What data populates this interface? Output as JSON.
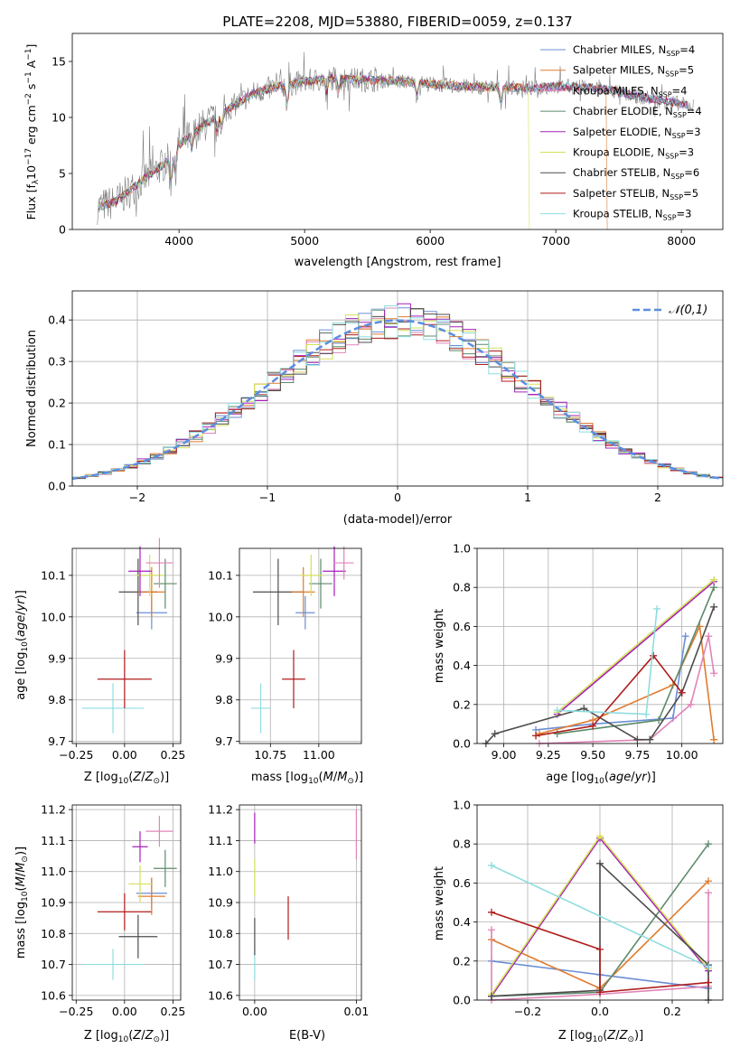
{
  "chart_data": [
    {
      "type": "line",
      "title": "PLATE=2208, MJD=53880, FIBERID=0059, z=0.137",
      "xlabel": "wavelength [Angstrom, rest frame]",
      "ylabel": "Flux [fλ10⁻¹⁷ erg cm⁻² s⁻¹ A⁻¹]",
      "xlim": [
        3150,
        8330
      ],
      "ylim": [
        0,
        17.5
      ],
      "xticks": [
        4000,
        5000,
        6000,
        7000,
        8000
      ],
      "yticks": [
        0,
        5,
        10,
        15
      ],
      "grid": false,
      "legend_position": "upper right",
      "data_color": "#808080",
      "continuum": {
        "x": [
          3350,
          3500,
          3700,
          3900,
          4000,
          4200,
          4400,
          4600,
          4800,
          5000,
          5200,
          5400,
          5600,
          5800,
          6000,
          6200,
          6400,
          6600,
          6800,
          7000,
          7200,
          7400,
          7600,
          7800,
          8000,
          8100
        ],
        "y": [
          2.0,
          2.5,
          4.3,
          6.0,
          7.6,
          9.3,
          10.8,
          12.2,
          12.8,
          13.2,
          13.5,
          13.4,
          13.3,
          13.2,
          13.0,
          12.8,
          12.7,
          12.7,
          12.6,
          12.8,
          12.7,
          12.5,
          12.0,
          11.6,
          11.2,
          11.0
        ]
      },
      "series": [
        {
          "name": "Chabrier MILES, N_SSP=4",
          "color": "#6b8ed6"
        },
        {
          "name": "Salpeter MILES, N_SSP=5",
          "color": "#e07b2f"
        },
        {
          "name": "Kroupa MILES, N_SSP=4",
          "color": "#e084b8"
        },
        {
          "name": "Chabrier ELODIE, N_SSP=4",
          "color": "#5d8a6a"
        },
        {
          "name": "Salpeter ELODIE, N_SSP=3",
          "color": "#a620b8"
        },
        {
          "name": "Kroupa ELODIE, N_SSP=3",
          "color": "#d4e05a"
        },
        {
          "name": "Chabrier STELIB, N_SSP=6",
          "color": "#4d4d4d"
        },
        {
          "name": "Salpeter STELIB, N_SSP=5",
          "color": "#b01c1c"
        },
        {
          "name": "Kroupa STELIB, N_SSP=3",
          "color": "#8fdde0"
        }
      ],
      "legend_entries": [
        {
          "prefix": "Chabrier MILES, N",
          "sub": "SSP",
          "suffix": "=4"
        },
        {
          "prefix": "Salpeter MILES, N",
          "sub": "SSP",
          "suffix": "=5"
        },
        {
          "prefix": "Kroupa MILES, N",
          "sub": "SSP",
          "suffix": "=4"
        },
        {
          "prefix": "Chabrier ELODIE, N",
          "sub": "SSP",
          "suffix": "=4"
        },
        {
          "prefix": "Salpeter ELODIE, N",
          "sub": "SSP",
          "suffix": "=3"
        },
        {
          "prefix": "Kroupa ELODIE, N",
          "sub": "SSP",
          "suffix": "=3"
        },
        {
          "prefix": "Chabrier STELIB, N",
          "sub": "SSP",
          "suffix": "=6"
        },
        {
          "prefix": "Salpeter STELIB, N",
          "sub": "SSP",
          "suffix": "=5"
        },
        {
          "prefix": "Kroupa STELIB, N",
          "sub": "SSP",
          "suffix": "=3"
        }
      ]
    },
    {
      "type": "bar",
      "xlabel": "(data-model)/error",
      "ylabel": "Normed distribution",
      "xlim": [
        -2.5,
        2.5
      ],
      "ylim": [
        0,
        0.47
      ],
      "xticks": [
        -2,
        -1,
        0,
        1,
        2
      ],
      "yticks": [
        0.0,
        0.1,
        0.2,
        0.3,
        0.4
      ],
      "grid": true,
      "legend_position": "upper right",
      "reference_curve": {
        "name": "𝒩(0,1)",
        "color": "#5b8ee0",
        "style": "dashed",
        "mean": 0,
        "sigma": 1
      },
      "bin_width": 0.1,
      "series_note": "one step histogram per model, same 9 colors as the spectrum panel"
    },
    {
      "type": "scatter",
      "xlabel": "Z [log₁₀(Z/Z⊙)]",
      "ylabel": "age  [log₁₀(age/yr)]",
      "xlim": [
        -0.27,
        0.29
      ],
      "ylim": [
        9.695,
        10.165
      ],
      "xticks": [
        -0.25,
        0.0,
        0.25
      ],
      "yticks": [
        9.7,
        9.8,
        9.9,
        10.0,
        10.1
      ],
      "grid": true,
      "points": [
        {
          "color": "#8fdde0",
          "x": -0.06,
          "xerr": 0.16,
          "y": 9.78,
          "yerr": 0.06
        },
        {
          "color": "#b01c1c",
          "x": 0.0,
          "xerr": 0.14,
          "y": 9.85,
          "yerr": 0.07
        },
        {
          "color": "#6b8ed6",
          "x": 0.14,
          "xerr": 0.08,
          "y": 10.01,
          "yerr": 0.04
        },
        {
          "color": "#4d4d4d",
          "x": 0.07,
          "xerr": 0.1,
          "y": 10.06,
          "yerr": 0.08
        },
        {
          "color": "#e07b2f",
          "x": 0.14,
          "xerr": 0.07,
          "y": 10.06,
          "yerr": 0.06
        },
        {
          "color": "#5d8a6a",
          "x": 0.21,
          "xerr": 0.06,
          "y": 10.08,
          "yerr": 0.06
        },
        {
          "color": "#d4e05a",
          "x": 0.13,
          "xerr": 0.07,
          "y": 10.1,
          "yerr": 0.05
        },
        {
          "color": "#a620b8",
          "x": 0.08,
          "xerr": 0.06,
          "y": 10.11,
          "yerr": 0.06
        },
        {
          "color": "#e084b8",
          "x": 0.18,
          "xerr": 0.07,
          "y": 10.13,
          "yerr": 0.06
        }
      ]
    },
    {
      "type": "scatter",
      "xlabel": "mass [log₁₀(M/M⊙)]",
      "ylabel": "",
      "xlim": [
        10.59,
        11.22
      ],
      "ylim": [
        9.695,
        10.165
      ],
      "xticks": [
        10.75,
        11.0
      ],
      "yticks": [
        9.7,
        9.8,
        9.9,
        10.0,
        10.1
      ],
      "grid": true,
      "points": [
        {
          "color": "#8fdde0",
          "x": 10.7,
          "xerr": 0.05,
          "y": 9.78,
          "yerr": 0.06
        },
        {
          "color": "#b01c1c",
          "x": 10.87,
          "xerr": 0.06,
          "y": 9.85,
          "yerr": 0.07
        },
        {
          "color": "#6b8ed6",
          "x": 10.93,
          "xerr": 0.05,
          "y": 10.01,
          "yerr": 0.04
        },
        {
          "color": "#4d4d4d",
          "x": 10.79,
          "xerr": 0.13,
          "y": 10.06,
          "yerr": 0.08
        },
        {
          "color": "#e07b2f",
          "x": 10.92,
          "xerr": 0.06,
          "y": 10.06,
          "yerr": 0.06
        },
        {
          "color": "#5d8a6a",
          "x": 11.01,
          "xerr": 0.06,
          "y": 10.08,
          "yerr": 0.06
        },
        {
          "color": "#d4e05a",
          "x": 10.96,
          "xerr": 0.06,
          "y": 10.1,
          "yerr": 0.05
        },
        {
          "color": "#a620b8",
          "x": 11.08,
          "xerr": 0.06,
          "y": 10.11,
          "yerr": 0.06
        },
        {
          "color": "#e084b8",
          "x": 11.13,
          "xerr": 0.05,
          "y": 10.13,
          "yerr": 0.04
        }
      ]
    },
    {
      "type": "line",
      "xlabel": "age  [log₁₀(age/yr)]",
      "ylabel": "mass weight",
      "xlim": [
        8.85,
        10.23
      ],
      "ylim": [
        0,
        1.0
      ],
      "xticks": [
        9.0,
        9.25,
        9.5,
        9.75,
        10.0
      ],
      "yticks": [
        0.0,
        0.2,
        0.4,
        0.6,
        0.8,
        1.0
      ],
      "grid": true,
      "series": [
        {
          "color": "#6b8ed6",
          "x": [
            9.18,
            9.5,
            9.95,
            10.02
          ],
          "y": [
            0.07,
            0.1,
            0.13,
            0.55
          ]
        },
        {
          "color": "#e07b2f",
          "x": [
            9.2,
            9.5,
            9.95,
            10.1,
            10.18
          ],
          "y": [
            0.05,
            0.12,
            0.3,
            0.6,
            0.02
          ]
        },
        {
          "color": "#e084b8",
          "x": [
            9.2,
            9.82,
            10.05,
            10.15,
            10.18
          ],
          "y": [
            0.0,
            0.02,
            0.2,
            0.55,
            0.36
          ]
        },
        {
          "color": "#5d8a6a",
          "x": [
            9.3,
            9.87,
            10.18
          ],
          "y": [
            0.05,
            0.12,
            0.8
          ]
        },
        {
          "color": "#a620b8",
          "x": [
            9.3,
            10.18
          ],
          "y": [
            0.15,
            0.83
          ]
        },
        {
          "color": "#d4e05a",
          "x": [
            9.3,
            10.18
          ],
          "y": [
            0.16,
            0.84
          ]
        },
        {
          "color": "#4d4d4d",
          "x": [
            8.9,
            8.95,
            9.45,
            9.75,
            9.82,
            10.0,
            10.18
          ],
          "y": [
            0.0,
            0.05,
            0.18,
            0.02,
            0.02,
            0.26,
            0.7
          ]
        },
        {
          "color": "#b01c1c",
          "x": [
            9.18,
            9.5,
            9.84,
            10.0
          ],
          "y": [
            0.04,
            0.09,
            0.45,
            0.26
          ]
        },
        {
          "color": "#8fdde0",
          "x": [
            9.3,
            9.8,
            9.86
          ],
          "y": [
            0.17,
            0.15,
            0.69
          ]
        }
      ]
    },
    {
      "type": "scatter",
      "xlabel": "Z [log₁₀(Z/Z⊙)]",
      "ylabel": "mass [log₁₀(M/M⊙)]",
      "xlim": [
        -0.27,
        0.29
      ],
      "ylim": [
        10.585,
        11.215
      ],
      "xticks": [
        -0.25,
        0.0,
        0.25
      ],
      "yticks": [
        10.6,
        10.7,
        10.8,
        10.9,
        11.0,
        11.1,
        11.2
      ],
      "grid": true,
      "points": [
        {
          "color": "#8fdde0",
          "x": -0.06,
          "xerr": 0.16,
          "y": 10.7,
          "yerr": 0.05
        },
        {
          "color": "#b01c1c",
          "x": 0.0,
          "xerr": 0.14,
          "y": 10.87,
          "yerr": 0.06
        },
        {
          "color": "#6b8ed6",
          "x": 0.14,
          "xerr": 0.08,
          "y": 10.93,
          "yerr": 0.05
        },
        {
          "color": "#4d4d4d",
          "x": 0.07,
          "xerr": 0.1,
          "y": 10.79,
          "yerr": 0.07
        },
        {
          "color": "#e07b2f",
          "x": 0.14,
          "xerr": 0.07,
          "y": 10.92,
          "yerr": 0.06
        },
        {
          "color": "#5d8a6a",
          "x": 0.21,
          "xerr": 0.06,
          "y": 11.01,
          "yerr": 0.06
        },
        {
          "color": "#d4e05a",
          "x": 0.08,
          "xerr": 0.06,
          "y": 10.96,
          "yerr": 0.06
        },
        {
          "color": "#a620b8",
          "x": 0.08,
          "xerr": 0.04,
          "y": 11.08,
          "yerr": 0.05
        },
        {
          "color": "#e084b8",
          "x": 0.18,
          "xerr": 0.07,
          "y": 11.13,
          "yerr": 0.05
        }
      ]
    },
    {
      "type": "scatter",
      "xlabel": "E(B-V)",
      "ylabel": "",
      "xlim": [
        -0.0015,
        0.0105
      ],
      "ylim": [
        10.585,
        11.215
      ],
      "xticks": [
        0.0,
        0.01
      ],
      "yticks": [
        10.6,
        10.7,
        10.8,
        10.9,
        11.0,
        11.1,
        11.2
      ],
      "grid": true,
      "points": [
        {
          "color": "#8fdde0",
          "x": 0.0,
          "y": 10.7,
          "yerr": 0.05
        },
        {
          "color": "#4d4d4d",
          "x": 0.0,
          "y": 10.79,
          "yerr": 0.06
        },
        {
          "color": "#d4e05a",
          "x": 0.0,
          "y": 10.98,
          "yerr": 0.06
        },
        {
          "color": "#a620b8",
          "x": 0.0,
          "y": 11.14,
          "yerr": 0.05
        },
        {
          "color": "#b01c1c",
          "x": 0.0033,
          "y": 10.85,
          "yerr": 0.07
        },
        {
          "color": "#e084b8",
          "x": 0.01,
          "y": 11.12,
          "yerr": 0.08
        }
      ]
    },
    {
      "type": "line",
      "xlabel": "Z [log₁₀(Z/Z⊙)]",
      "ylabel": "mass weight",
      "xlim": [
        -0.34,
        0.34
      ],
      "ylim": [
        0,
        1.0
      ],
      "xticks": [
        -0.2,
        0.0,
        0.2
      ],
      "yticks": [
        0.0,
        0.2,
        0.4,
        0.6,
        0.8,
        1.0
      ],
      "grid": true,
      "series": [
        {
          "color": "#6b8ed6",
          "x": [
            -0.3,
            0.0,
            0.3
          ],
          "y": [
            0.2,
            0.13,
            0.06
          ]
        },
        {
          "color": "#e07b2f",
          "x": [
            -0.3,
            0.0,
            0.3
          ],
          "y": [
            0.31,
            0.06,
            0.61
          ]
        },
        {
          "color": "#e084b8",
          "x": [
            -0.3,
            -0.3,
            0.0,
            0.3,
            0.3
          ],
          "y": [
            0.36,
            0.0,
            0.03,
            0.07,
            0.55
          ]
        },
        {
          "color": "#5d8a6a",
          "x": [
            -0.3,
            0.0,
            0.3
          ],
          "y": [
            0.02,
            0.04,
            0.8
          ]
        },
        {
          "color": "#a620b8",
          "x": [
            -0.3,
            0.0,
            0.3
          ],
          "y": [
            0.02,
            0.83,
            0.15
          ]
        },
        {
          "color": "#d4e05a",
          "x": [
            -0.3,
            0.0,
            0.3
          ],
          "y": [
            0.03,
            0.84,
            0.16
          ]
        },
        {
          "color": "#4d4d4d",
          "x": [
            -0.3,
            0.0,
            0.0,
            0.3,
            0.3
          ],
          "y": [
            0.02,
            0.05,
            0.7,
            0.18,
            0.0
          ]
        },
        {
          "color": "#b01c1c",
          "x": [
            -0.3,
            0.0,
            0.0,
            0.3
          ],
          "y": [
            0.45,
            0.26,
            0.04,
            0.09
          ]
        },
        {
          "color": "#8fdde0",
          "x": [
            -0.3,
            0.3
          ],
          "y": [
            0.69,
            0.17
          ]
        }
      ]
    }
  ]
}
